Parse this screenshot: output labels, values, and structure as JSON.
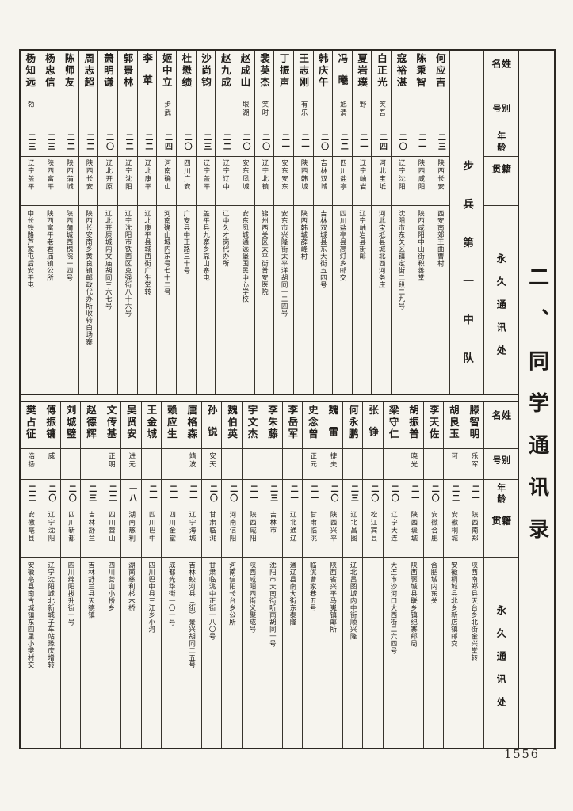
{
  "page": {
    "section_title": "二、同学通讯录",
    "page_number": "1556",
    "colors": {
      "paper": "#f6f4ee",
      "ink": "#221f1c",
      "line": "#38332c"
    }
  },
  "headers": {
    "name": "姓名",
    "byname": "别号",
    "age": "年龄",
    "native_place": "籍贯",
    "address": "永久通讯处"
  },
  "top_table": {
    "unit_label": "步兵第一中队",
    "entries": [
      {
        "name": "何应吉",
        "byname": "",
        "age": "二三",
        "native": "陕西长安",
        "address": "西安南郊王曲曹村"
      },
      {
        "name": "陈秉智",
        "byname": "",
        "age": "二一",
        "native": "陕西咸阳",
        "address": "陕西咸阳中山街积善堂"
      },
      {
        "name": "寇裕湛",
        "byname": "",
        "age": "二〇",
        "native": "辽宁沈阳",
        "address": "沈阳市东关区镇定街二段二九号"
      },
      {
        "name": "白正光",
        "byname": "笑吾",
        "age": "二四",
        "native": "河北宝坻",
        "address": "河北宝坻县城北西河务庄"
      },
      {
        "name": "夏岩璞",
        "byname": "野",
        "age": "二一",
        "native": "辽宁岫岩",
        "address": "辽宁岫岩县街邮"
      },
      {
        "name": "冯曦",
        "byname": "旭清",
        "age": "二二",
        "native": "四川盐亭",
        "address": "四川盐亭县高灯乡邮交"
      },
      {
        "name": "韩庆午",
        "byname": "",
        "age": "二〇",
        "native": "吉林双城",
        "address": "吉林双城县东大街五四号"
      },
      {
        "name": "王志刚",
        "byname": "有乐",
        "age": "二一",
        "native": "陕西韩城",
        "address": "陕西韩城薛峰村"
      },
      {
        "name": "丁振声",
        "byname": "",
        "age": "二一",
        "native": "安东安东",
        "address": "安东市兴隆街太平洋胡同一二四号"
      },
      {
        "name": "裴英杰",
        "byname": "笑时",
        "age": "二〇",
        "native": "辽宁北镇",
        "address": "锦州西关区太平街普安医院"
      },
      {
        "name": "赵成山",
        "byname": "垠湖",
        "age": "二〇",
        "native": "安东凤城",
        "address": "安东凤城通远堡国民中心学校"
      },
      {
        "name": "赵九成",
        "byname": "",
        "age": "二二",
        "native": "辽宁辽中",
        "address": "辽中久才岗代办所"
      },
      {
        "name": "沙尚钧",
        "byname": "",
        "age": "二三",
        "native": "辽宁盖平",
        "address": "盖平县九寨乡靠山寨屯"
      },
      {
        "name": "杜懋绩",
        "byname": "",
        "age": "二〇",
        "native": "四川广安",
        "address": "广安县中正路三十号"
      },
      {
        "name": "姬中立",
        "byname": "步武",
        "age": "二四",
        "native": "河南确山",
        "address": "河南确山城内东号七十二号"
      },
      {
        "name": "李革",
        "byname": "",
        "age": "二二",
        "native": "辽北康平",
        "address": "辽北康平县城西街广生堂转"
      },
      {
        "name": "郭景林",
        "byname": "",
        "age": "二二",
        "native": "辽宁沈阳",
        "address": "辽宁沈阳市铁西区克强街八十六号"
      },
      {
        "name": "萧明谦",
        "byname": "",
        "age": "二〇",
        "native": "辽北开原",
        "address": "辽北开原城内文庙胡同三六七号"
      },
      {
        "name": "周志超",
        "byname": "",
        "age": "二二",
        "native": "陕西长安",
        "address": "陕西长安南乡黄良镇邮政代办所收转白场寨"
      },
      {
        "name": "陈师友",
        "byname": "",
        "age": "二二",
        "native": "陕西蒲城",
        "address": "陕西蒲城西槐院一四号"
      },
      {
        "name": "杨忠信",
        "byname": "",
        "age": "二三",
        "native": "陕西富平",
        "address": "陕西富平老君庙镇公所"
      },
      {
        "name": "杨知远",
        "byname": "勃",
        "age": "二三",
        "native": "辽宁盖平",
        "address": "中长铁路芦家屯后安平屯"
      }
    ]
  },
  "bottom_table": {
    "entries": [
      {
        "name": "滕智明",
        "byname": "乐军",
        "age": "二一",
        "native": "陕西南郑",
        "address": "陕西南郑县天台乡北街金兴堂转"
      },
      {
        "name": "胡良玉",
        "byname": "可",
        "age": "二二",
        "native": "安徽桐城",
        "address": "安徽桐城县北乡新店镇邮交"
      },
      {
        "name": "李天佐",
        "byname": "",
        "age": "二〇",
        "native": "安徽合肥",
        "address": "合肥城内东关"
      },
      {
        "name": "胡振普",
        "byname": "晓光",
        "age": "二一",
        "native": "陕西褒城",
        "address": "陕西褒城县联乡镇纪寨邮局"
      },
      {
        "name": "梁守仁",
        "byname": "",
        "age": "二〇",
        "native": "辽宁大连",
        "address": "大连市沙河口大西街二六四号"
      },
      {
        "name": "张铮",
        "byname": "",
        "age": "二〇",
        "native": "松江宾县",
        "address": ""
      },
      {
        "name": "何永鹏",
        "byname": "",
        "age": "二三",
        "native": "辽北昌图",
        "address": "辽北昌图城内中街顺兴隆"
      },
      {
        "name": "魏雷",
        "byname": "捷夫",
        "age": "二〇",
        "native": "陕西兴平",
        "address": "陕西省兴平马嵬镇邮所"
      },
      {
        "name": "史念曾",
        "byname": "正元",
        "age": "二一",
        "native": "甘肃临洮",
        "address": "临洮曹家巷五号"
      },
      {
        "name": "李岳军",
        "byname": "",
        "age": "二一",
        "native": "辽北通辽",
        "address": "通辽县南大街东泰隆"
      },
      {
        "name": "李朱藤",
        "byname": "",
        "age": "二三",
        "native": "吉林市",
        "address": "沈阳市大南街听雨胡同十号"
      },
      {
        "name": "宇文杰",
        "byname": "",
        "age": "二一",
        "native": "陕西咸阳",
        "address": "陕西咸阳西街义聚成号"
      },
      {
        "name": "魏伯英",
        "byname": "",
        "age": "二〇",
        "native": "河南信阳",
        "address": "河南信阳长台乡公所"
      },
      {
        "name": "孙锐",
        "byname": "安天",
        "age": "二〇",
        "native": "甘肃临洮",
        "address": "甘肃临洮中正街一八〇号"
      },
      {
        "name": "唐格森",
        "byname": "靖波",
        "age": "二一",
        "native": "辽宁海城",
        "address": "吉林蛟河县（街）景兴胡同二五号"
      },
      {
        "name": "赖应生",
        "byname": "",
        "age": "二一",
        "native": "四川金堂",
        "address": "成都光华街一〇一号"
      },
      {
        "name": "王金城",
        "byname": "",
        "age": "二一",
        "native": "四川巴中",
        "address": "四川巴中县三江乡小河"
      },
      {
        "name": "吴贤安",
        "byname": "进元",
        "age": "一八",
        "native": "湖南慈利",
        "address": "湖南慈利杉木桥"
      },
      {
        "name": "文传基",
        "byname": "正明",
        "age": "二二",
        "native": "四川营山",
        "address": "四川营山小桥乡"
      },
      {
        "name": "赵德辉",
        "byname": "",
        "age": "二三",
        "native": "吉林舒兰",
        "address": "吉林舒兰县天德镇"
      },
      {
        "name": "刘城璧",
        "byname": "",
        "age": "二〇",
        "native": "四川新都",
        "address": "四川绵阳拔升街一号"
      },
      {
        "name": "傅振镛",
        "byname": "威",
        "age": "二〇",
        "native": "辽宁沈阳",
        "address": "辽宁沈阳城北新城子车站豫庆增转"
      },
      {
        "name": "樊占征",
        "byname": "浩扬",
        "age": "二二",
        "native": "安徽亳县",
        "address": "安徽亳县南古城镇东四里小樊村交"
      }
    ]
  }
}
